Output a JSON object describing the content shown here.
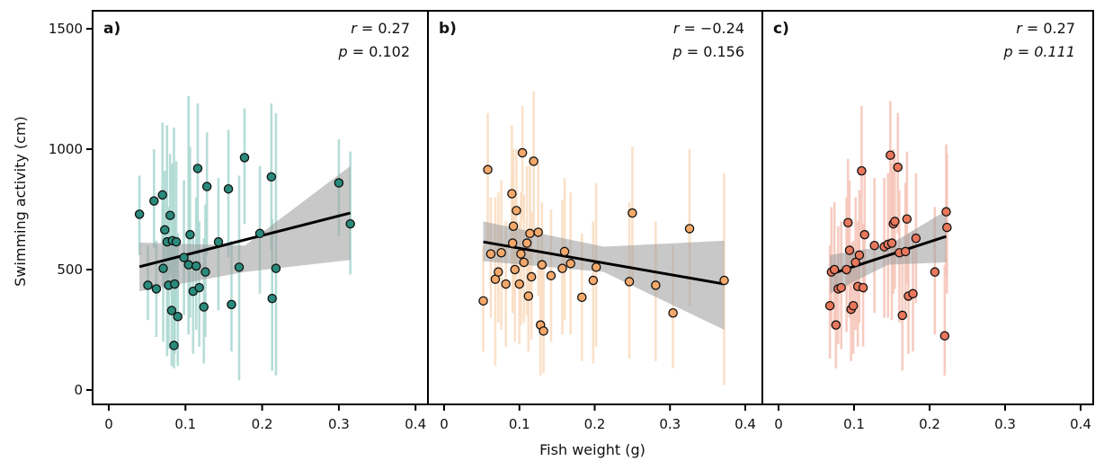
{
  "figure": {
    "xlabel": "Fish weight (g)",
    "ylabel": "Swimming activity  (cm)"
  },
  "chart_data": [
    {
      "type": "scatter",
      "panel_label": "a)",
      "r_value": "0.27",
      "p_value": "0.102",
      "p_italic": false,
      "xlim": [
        0,
        0.4
      ],
      "ylim": [
        0,
        1500
      ],
      "x_ticks": [
        "0",
        "0.1",
        "0.2",
        "0.3",
        "0.4"
      ],
      "y_ticks": [
        "0",
        "500",
        "1000",
        "1500"
      ],
      "point_color": "#2a8a7c",
      "error_color": "#a9d7d0",
      "band_color": "#9a9a9a",
      "trend": {
        "x0": 0.04,
        "y0": 512,
        "x1": 0.315,
        "y1": 735,
        "band_lo0": 410,
        "band_hi0": 612,
        "band_lo1": 540,
        "band_hi1": 930,
        "band_lo_mid": 490,
        "band_hi_mid": 600
      },
      "points": [
        {
          "x": 0.04,
          "y": 730,
          "lo": 560,
          "hi": 890
        },
        {
          "x": 0.051,
          "y": 435,
          "lo": 290,
          "hi": 600
        },
        {
          "x": 0.059,
          "y": 785,
          "lo": 590,
          "hi": 1000
        },
        {
          "x": 0.062,
          "y": 420,
          "lo": 220,
          "hi": 620
        },
        {
          "x": 0.07,
          "y": 810,
          "lo": 610,
          "hi": 1110
        },
        {
          "x": 0.071,
          "y": 505,
          "lo": 200,
          "hi": 810
        },
        {
          "x": 0.073,
          "y": 665,
          "lo": 430,
          "hi": 910
        },
        {
          "x": 0.076,
          "y": 615,
          "lo": 140,
          "hi": 1100
        },
        {
          "x": 0.078,
          "y": 435,
          "lo": 170,
          "hi": 760
        },
        {
          "x": 0.08,
          "y": 725,
          "lo": 480,
          "hi": 980
        },
        {
          "x": 0.082,
          "y": 330,
          "lo": 100,
          "hi": 620
        },
        {
          "x": 0.083,
          "y": 620,
          "lo": 360,
          "hi": 940
        },
        {
          "x": 0.085,
          "y": 185,
          "lo": 90,
          "hi": 1090
        },
        {
          "x": 0.086,
          "y": 440,
          "lo": 150,
          "hi": 730
        },
        {
          "x": 0.088,
          "y": 615,
          "lo": 330,
          "hi": 950
        },
        {
          "x": 0.09,
          "y": 305,
          "lo": 100,
          "hi": 650
        },
        {
          "x": 0.098,
          "y": 550,
          "lo": 310,
          "hi": 870
        },
        {
          "x": 0.104,
          "y": 520,
          "lo": 230,
          "hi": 1220
        },
        {
          "x": 0.106,
          "y": 645,
          "lo": 300,
          "hi": 1010
        },
        {
          "x": 0.11,
          "y": 410,
          "lo": 150,
          "hi": 650
        },
        {
          "x": 0.114,
          "y": 515,
          "lo": 250,
          "hi": 800
        },
        {
          "x": 0.116,
          "y": 920,
          "lo": 560,
          "hi": 1190
        },
        {
          "x": 0.118,
          "y": 425,
          "lo": 180,
          "hi": 700
        },
        {
          "x": 0.124,
          "y": 345,
          "lo": 110,
          "hi": 630
        },
        {
          "x": 0.126,
          "y": 490,
          "lo": 220,
          "hi": 770
        },
        {
          "x": 0.128,
          "y": 845,
          "lo": 560,
          "hi": 1070
        },
        {
          "x": 0.143,
          "y": 615,
          "lo": 330,
          "hi": 880
        },
        {
          "x": 0.156,
          "y": 835,
          "lo": 550,
          "hi": 1080
        },
        {
          "x": 0.16,
          "y": 355,
          "lo": 160,
          "hi": 620
        },
        {
          "x": 0.17,
          "y": 510,
          "lo": 40,
          "hi": 890
        },
        {
          "x": 0.177,
          "y": 965,
          "lo": 690,
          "hi": 1170
        },
        {
          "x": 0.197,
          "y": 650,
          "lo": 400,
          "hi": 930
        },
        {
          "x": 0.212,
          "y": 885,
          "lo": 580,
          "hi": 1190
        },
        {
          "x": 0.213,
          "y": 380,
          "lo": 80,
          "hi": 710
        },
        {
          "x": 0.218,
          "y": 505,
          "lo": 60,
          "hi": 1150
        },
        {
          "x": 0.3,
          "y": 860,
          "lo": 640,
          "hi": 1040
        },
        {
          "x": 0.315,
          "y": 690,
          "lo": 480,
          "hi": 990
        }
      ]
    },
    {
      "type": "scatter",
      "panel_label": "b)",
      "r_value": "−0.24",
      "p_value": "0.156",
      "p_italic": false,
      "xlim": [
        0,
        0.4
      ],
      "ylim": [
        0,
        1500
      ],
      "x_ticks": [
        "0",
        "0.1",
        "0.2",
        "0.3",
        "0.4"
      ],
      "y_ticks": [],
      "point_color": "#f4a96b",
      "error_color": "#f9dcc0",
      "band_color": "#9a9a9a",
      "trend": {
        "x0": 0.052,
        "y0": 615,
        "x1": 0.372,
        "y1": 440,
        "band_lo0": 535,
        "band_hi0": 700,
        "band_lo1": 250,
        "band_hi1": 620,
        "band_lo_mid": 490,
        "band_hi_mid": 595
      },
      "points": [
        {
          "x": 0.052,
          "y": 370,
          "lo": 160,
          "hi": 600
        },
        {
          "x": 0.058,
          "y": 915,
          "lo": 610,
          "hi": 1150
        },
        {
          "x": 0.062,
          "y": 565,
          "lo": 300,
          "hi": 800
        },
        {
          "x": 0.068,
          "y": 460,
          "lo": 100,
          "hi": 800
        },
        {
          "x": 0.072,
          "y": 490,
          "lo": 280,
          "hi": 820
        },
        {
          "x": 0.076,
          "y": 570,
          "lo": 250,
          "hi": 870
        },
        {
          "x": 0.082,
          "y": 440,
          "lo": 180,
          "hi": 700
        },
        {
          "x": 0.09,
          "y": 815,
          "lo": 520,
          "hi": 1100
        },
        {
          "x": 0.091,
          "y": 610,
          "lo": 320,
          "hi": 900
        },
        {
          "x": 0.092,
          "y": 680,
          "lo": 400,
          "hi": 1000
        },
        {
          "x": 0.094,
          "y": 500,
          "lo": 200,
          "hi": 800
        },
        {
          "x": 0.096,
          "y": 745,
          "lo": 460,
          "hi": 1000
        },
        {
          "x": 0.1,
          "y": 440,
          "lo": 190,
          "hi": 700
        },
        {
          "x": 0.102,
          "y": 565,
          "lo": 270,
          "hi": 820
        },
        {
          "x": 0.104,
          "y": 985,
          "lo": 710,
          "hi": 1180
        },
        {
          "x": 0.106,
          "y": 530,
          "lo": 280,
          "hi": 810
        },
        {
          "x": 0.11,
          "y": 610,
          "lo": 310,
          "hi": 930
        },
        {
          "x": 0.112,
          "y": 390,
          "lo": 160,
          "hi": 640
        },
        {
          "x": 0.114,
          "y": 650,
          "lo": 390,
          "hi": 970
        },
        {
          "x": 0.116,
          "y": 470,
          "lo": 210,
          "hi": 740
        },
        {
          "x": 0.119,
          "y": 950,
          "lo": 650,
          "hi": 1240
        },
        {
          "x": 0.125,
          "y": 655,
          "lo": 390,
          "hi": 940
        },
        {
          "x": 0.128,
          "y": 270,
          "lo": 60,
          "hi": 520
        },
        {
          "x": 0.13,
          "y": 520,
          "lo": 230,
          "hi": 780
        },
        {
          "x": 0.132,
          "y": 245,
          "lo": 70,
          "hi": 540
        },
        {
          "x": 0.142,
          "y": 475,
          "lo": 200,
          "hi": 750
        },
        {
          "x": 0.157,
          "y": 505,
          "lo": 230,
          "hi": 790
        },
        {
          "x": 0.16,
          "y": 575,
          "lo": 290,
          "hi": 880
        },
        {
          "x": 0.168,
          "y": 525,
          "lo": 230,
          "hi": 820
        },
        {
          "x": 0.183,
          "y": 385,
          "lo": 120,
          "hi": 650
        },
        {
          "x": 0.198,
          "y": 455,
          "lo": 110,
          "hi": 700
        },
        {
          "x": 0.202,
          "y": 510,
          "lo": 180,
          "hi": 860
        },
        {
          "x": 0.246,
          "y": 450,
          "lo": 130,
          "hi": 780
        },
        {
          "x": 0.25,
          "y": 735,
          "lo": 440,
          "hi": 1010
        },
        {
          "x": 0.281,
          "y": 435,
          "lo": 120,
          "hi": 700
        },
        {
          "x": 0.304,
          "y": 320,
          "lo": 90,
          "hi": 600
        },
        {
          "x": 0.326,
          "y": 670,
          "lo": 350,
          "hi": 1000
        },
        {
          "x": 0.372,
          "y": 455,
          "lo": 20,
          "hi": 900
        }
      ]
    },
    {
      "type": "scatter",
      "panel_label": "c)",
      "r_value": "0.27",
      "p_value": "0.111",
      "p_italic": true,
      "xlim": [
        0,
        0.4
      ],
      "ylim": [
        0,
        1500
      ],
      "x_ticks": [
        "0",
        "0.1",
        "0.2",
        "0.3",
        "0.4"
      ],
      "y_ticks": [],
      "point_color": "#e8775c",
      "error_color": "#f6c3b6",
      "band_color": "#9a9a9a",
      "trend": {
        "x0": 0.068,
        "y0": 480,
        "x1": 0.222,
        "y1": 638,
        "band_lo0": 400,
        "band_hi0": 560,
        "band_lo1": 530,
        "band_hi1": 745,
        "band_lo_mid": 520,
        "band_hi_mid": 600
      },
      "points": [
        {
          "x": 0.068,
          "y": 350,
          "lo": 130,
          "hi": 600
        },
        {
          "x": 0.07,
          "y": 490,
          "lo": 260,
          "hi": 760
        },
        {
          "x": 0.074,
          "y": 500,
          "lo": 250,
          "hi": 780
        },
        {
          "x": 0.076,
          "y": 270,
          "lo": 90,
          "hi": 500
        },
        {
          "x": 0.079,
          "y": 420,
          "lo": 190,
          "hi": 680
        },
        {
          "x": 0.083,
          "y": 425,
          "lo": 170,
          "hi": 700
        },
        {
          "x": 0.09,
          "y": 500,
          "lo": 240,
          "hi": 800
        },
        {
          "x": 0.092,
          "y": 695,
          "lo": 430,
          "hi": 960
        },
        {
          "x": 0.094,
          "y": 580,
          "lo": 300,
          "hi": 870
        },
        {
          "x": 0.096,
          "y": 335,
          "lo": 120,
          "hi": 610
        },
        {
          "x": 0.099,
          "y": 350,
          "lo": 150,
          "hi": 620
        },
        {
          "x": 0.102,
          "y": 530,
          "lo": 250,
          "hi": 800
        },
        {
          "x": 0.105,
          "y": 430,
          "lo": 180,
          "hi": 700
        },
        {
          "x": 0.107,
          "y": 560,
          "lo": 280,
          "hi": 830
        },
        {
          "x": 0.11,
          "y": 910,
          "lo": 650,
          "hi": 1180
        },
        {
          "x": 0.112,
          "y": 425,
          "lo": 180,
          "hi": 690
        },
        {
          "x": 0.114,
          "y": 645,
          "lo": 400,
          "hi": 910
        },
        {
          "x": 0.127,
          "y": 600,
          "lo": 320,
          "hi": 880
        },
        {
          "x": 0.14,
          "y": 595,
          "lo": 300,
          "hi": 880
        },
        {
          "x": 0.145,
          "y": 605,
          "lo": 300,
          "hi": 900
        },
        {
          "x": 0.148,
          "y": 975,
          "lo": 680,
          "hi": 1200
        },
        {
          "x": 0.15,
          "y": 610,
          "lo": 290,
          "hi": 940
        },
        {
          "x": 0.152,
          "y": 690,
          "lo": 400,
          "hi": 1000
        },
        {
          "x": 0.154,
          "y": 700,
          "lo": 420,
          "hi": 980
        },
        {
          "x": 0.158,
          "y": 925,
          "lo": 650,
          "hi": 1150
        },
        {
          "x": 0.16,
          "y": 570,
          "lo": 280,
          "hi": 830
        },
        {
          "x": 0.164,
          "y": 310,
          "lo": 80,
          "hi": 580
        },
        {
          "x": 0.168,
          "y": 575,
          "lo": 300,
          "hi": 860
        },
        {
          "x": 0.17,
          "y": 710,
          "lo": 440,
          "hi": 990
        },
        {
          "x": 0.172,
          "y": 390,
          "lo": 150,
          "hi": 650
        },
        {
          "x": 0.178,
          "y": 400,
          "lo": 160,
          "hi": 660
        },
        {
          "x": 0.182,
          "y": 630,
          "lo": 360,
          "hi": 900
        },
        {
          "x": 0.207,
          "y": 490,
          "lo": 230,
          "hi": 760
        },
        {
          "x": 0.22,
          "y": 225,
          "lo": 60,
          "hi": 520
        },
        {
          "x": 0.222,
          "y": 740,
          "lo": 470,
          "hi": 1020
        },
        {
          "x": 0.223,
          "y": 675,
          "lo": 400,
          "hi": 980
        }
      ]
    }
  ]
}
